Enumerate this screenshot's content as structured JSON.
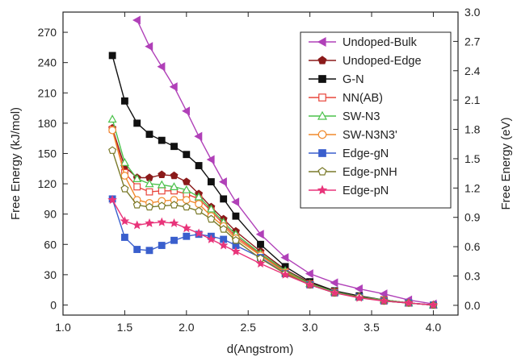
{
  "chart_data": {
    "type": "line",
    "xlabel": "d(Angstrom)",
    "ylabel": "Free Energy (kJ/mol)",
    "y2label": "Free Energy (eV)",
    "xlim": [
      1.0,
      4.2
    ],
    "ylim": [
      -10,
      290
    ],
    "y2lim": [
      -0.1,
      3.0
    ],
    "xticks": [
      "1.0",
      "1.5",
      "2.0",
      "2.5",
      "3.0",
      "3.5",
      "4.0"
    ],
    "yticks": [
      "0",
      "30",
      "60",
      "90",
      "120",
      "150",
      "180",
      "210",
      "240",
      "270"
    ],
    "y2ticks": [
      "0.0",
      "0.3",
      "0.6",
      "0.9",
      "1.2",
      "1.5",
      "1.8",
      "2.1",
      "2.4",
      "2.7",
      "3.0"
    ],
    "grid": false,
    "legend_position": "top-right",
    "series": [
      {
        "name": "Undoped-Bulk",
        "color": "#b040b8",
        "marker": "triangle-left",
        "filled": true,
        "x": [
          1.6,
          1.7,
          1.8,
          1.9,
          2.0,
          2.1,
          2.2,
          2.3,
          2.4,
          2.6,
          2.8,
          3.0,
          3.2,
          3.4,
          3.6,
          3.8,
          4.0
        ],
        "y": [
          282,
          256,
          236,
          216,
          192,
          167,
          144,
          122,
          102,
          70,
          47,
          31,
          22,
          16,
          11,
          5,
          1
        ]
      },
      {
        "name": "Undoped-Edge",
        "color": "#8b1a1a",
        "marker": "pentagon",
        "filled": true,
        "x": [
          1.4,
          1.5,
          1.6,
          1.7,
          1.8,
          1.9,
          2.0,
          2.1,
          2.2,
          2.3,
          2.4,
          2.6,
          2.8,
          3.0,
          3.2,
          3.4,
          3.6,
          3.8,
          4.0
        ],
        "y": [
          175,
          137,
          126,
          126,
          129,
          128,
          122,
          110,
          97,
          85,
          73,
          53,
          35,
          22,
          13,
          8,
          5,
          2,
          0
        ]
      },
      {
        "name": "G-N",
        "color": "#111111",
        "marker": "square",
        "filled": true,
        "x": [
          1.4,
          1.5,
          1.6,
          1.7,
          1.8,
          1.9,
          2.0,
          2.1,
          2.2,
          2.3,
          2.4,
          2.6,
          2.8,
          3.0,
          3.2,
          3.4,
          3.6,
          3.8,
          4.0
        ],
        "y": [
          247,
          202,
          180,
          169,
          163,
          157,
          149,
          138,
          122,
          105,
          88,
          60,
          38,
          23,
          14,
          9,
          5,
          2,
          0
        ]
      },
      {
        "name": "NN(AB)",
        "color": "#e8463c",
        "marker": "square",
        "filled": false,
        "x": [
          1.4,
          1.5,
          1.6,
          1.7,
          1.8,
          1.9,
          2.0,
          2.1,
          2.2,
          2.3,
          2.4,
          2.6,
          2.8,
          3.0,
          3.2,
          3.4,
          3.6,
          3.8,
          4.0
        ],
        "y": [
          174,
          131,
          117,
          112,
          113,
          113,
          110,
          105,
          93,
          80,
          68,
          50,
          33,
          21,
          13,
          8,
          5,
          2,
          0
        ]
      },
      {
        "name": "SW-N3",
        "color": "#4cc24c",
        "marker": "triangle-up",
        "filled": false,
        "x": [
          1.4,
          1.5,
          1.6,
          1.7,
          1.8,
          1.9,
          2.0,
          2.1,
          2.2,
          2.3,
          2.4,
          2.6,
          2.8,
          3.0,
          3.2,
          3.4,
          3.6,
          3.8,
          4.0
        ],
        "y": [
          184,
          141,
          125,
          120,
          119,
          117,
          114,
          107,
          95,
          82,
          70,
          51,
          34,
          21,
          13,
          8,
          5,
          2,
          0
        ]
      },
      {
        "name": "SW-N3N3'",
        "color": "#f08a2c",
        "marker": "circle",
        "filled": false,
        "x": [
          1.4,
          1.5,
          1.6,
          1.7,
          1.8,
          1.9,
          2.0,
          2.1,
          2.2,
          2.3,
          2.4,
          2.6,
          2.8,
          3.0,
          3.2,
          3.4,
          3.6,
          3.8,
          4.0
        ],
        "y": [
          173,
          128,
          104,
          101,
          103,
          104,
          104,
          100,
          88,
          78,
          66,
          49,
          32,
          20,
          12,
          8,
          4,
          2,
          0
        ]
      },
      {
        "name": "Edge-gN",
        "color": "#3a5fcd",
        "marker": "square",
        "filled": true,
        "x": [
          1.4,
          1.5,
          1.6,
          1.7,
          1.8,
          1.9,
          2.0,
          2.1,
          2.2,
          2.3,
          2.4,
          2.6,
          2.8,
          3.0,
          3.2,
          3.4,
          3.6,
          3.8,
          4.0
        ],
        "y": [
          105,
          67,
          55,
          54,
          59,
          64,
          68,
          70,
          68,
          65,
          59,
          47,
          31,
          20,
          12,
          8,
          4,
          2,
          0
        ]
      },
      {
        "name": "Edge-pNH",
        "color": "#7a7a2a",
        "marker": "pentagon",
        "filled": false,
        "x": [
          1.4,
          1.5,
          1.6,
          1.7,
          1.8,
          1.9,
          2.0,
          2.1,
          2.2,
          2.3,
          2.4,
          2.6,
          2.8,
          3.0,
          3.2,
          3.4,
          3.6,
          3.8,
          4.0
        ],
        "y": [
          153,
          115,
          99,
          97,
          98,
          99,
          97,
          93,
          85,
          75,
          64,
          46,
          31,
          20,
          12,
          8,
          4,
          2,
          0
        ]
      },
      {
        "name": "Edge-pN",
        "color": "#e8347a",
        "marker": "star",
        "filled": true,
        "x": [
          1.4,
          1.5,
          1.6,
          1.7,
          1.8,
          1.9,
          2.0,
          2.1,
          2.2,
          2.3,
          2.4,
          2.6,
          2.8,
          3.0,
          3.2,
          3.4,
          3.6,
          3.8,
          4.0
        ],
        "y": [
          104,
          83,
          79,
          81,
          82,
          81,
          76,
          71,
          65,
          59,
          53,
          41,
          30,
          20,
          12,
          7,
          4,
          2,
          0
        ]
      }
    ]
  }
}
